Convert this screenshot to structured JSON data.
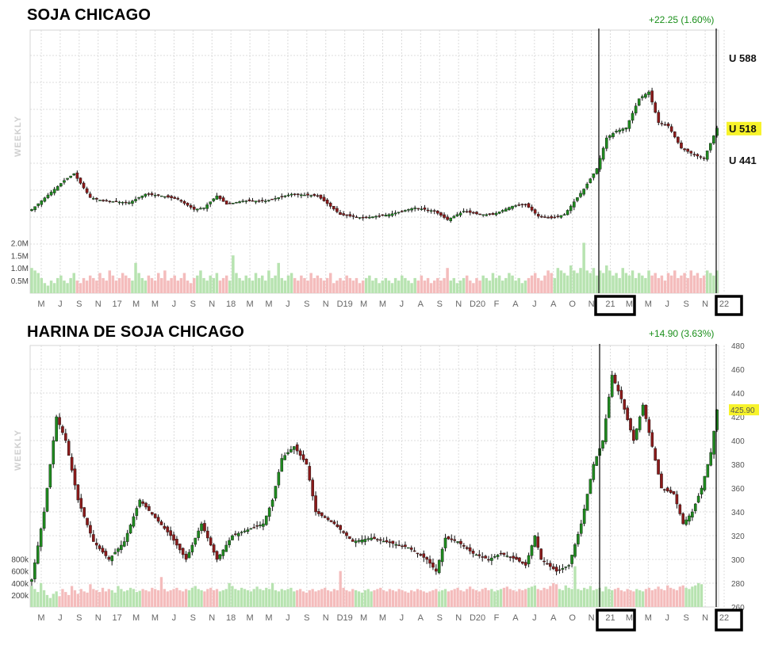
{
  "chart_data": [
    {
      "type": "candlestick",
      "title": "SOJA CHICAGO",
      "change_text": "+22.25 (1.60%)",
      "ylabel": "WEEKLY",
      "level_labels": [
        {
          "text": "U 588",
          "value": 1800,
          "highlight": false
        },
        {
          "text": "U 518",
          "value": 1387,
          "highlight": true
        },
        {
          "text": "U 441",
          "value": 1200,
          "highlight": false
        }
      ],
      "volume_ticks": [
        "2.0M",
        "1.5M",
        "1.0M",
        "0.5M"
      ],
      "volume_tick_values": [
        2.0,
        1.5,
        1.0,
        0.5
      ],
      "x_ticks": [
        "M",
        "J",
        "S",
        "N",
        "17",
        "M",
        "M",
        "J",
        "S",
        "N",
        "18",
        "M",
        "M",
        "J",
        "S",
        "N",
        "D19",
        "M",
        "M",
        "J",
        "A",
        "S",
        "N",
        "D20",
        "F",
        "A",
        "J",
        "A",
        "O",
        "N",
        "21",
        "M",
        "M",
        "J",
        "S",
        "N",
        "22"
      ],
      "boxed_x_ticks": [
        "21",
        "22"
      ],
      "grid": true,
      "anchors": [
        {
          "w": 0,
          "v": 910
        },
        {
          "w": 10,
          "v": 1080
        },
        {
          "w": 13,
          "v": 1120
        },
        {
          "w": 18,
          "v": 980
        },
        {
          "w": 22,
          "v": 960
        },
        {
          "w": 30,
          "v": 950
        },
        {
          "w": 35,
          "v": 1000
        },
        {
          "w": 40,
          "v": 990
        },
        {
          "w": 45,
          "v": 970
        },
        {
          "w": 50,
          "v": 910
        },
        {
          "w": 53,
          "v": 920
        },
        {
          "w": 57,
          "v": 990
        },
        {
          "w": 60,
          "v": 940
        },
        {
          "w": 65,
          "v": 960
        },
        {
          "w": 72,
          "v": 960
        },
        {
          "w": 80,
          "v": 1000
        },
        {
          "w": 88,
          "v": 990
        },
        {
          "w": 90,
          "v": 960
        },
        {
          "w": 95,
          "v": 880
        },
        {
          "w": 102,
          "v": 860
        },
        {
          "w": 110,
          "v": 880
        },
        {
          "w": 118,
          "v": 920
        },
        {
          "w": 124,
          "v": 900
        },
        {
          "w": 128,
          "v": 850
        },
        {
          "w": 133,
          "v": 900
        },
        {
          "w": 138,
          "v": 880
        },
        {
          "w": 142,
          "v": 880
        },
        {
          "w": 148,
          "v": 930
        },
        {
          "w": 152,
          "v": 940
        },
        {
          "w": 156,
          "v": 870
        },
        {
          "w": 160,
          "v": 860
        },
        {
          "w": 164,
          "v": 880
        },
        {
          "w": 170,
          "v": 1030
        },
        {
          "w": 174,
          "v": 1150
        },
        {
          "w": 177,
          "v": 1330
        },
        {
          "w": 180,
          "v": 1370
        },
        {
          "w": 183,
          "v": 1390
        },
        {
          "w": 187,
          "v": 1560
        },
        {
          "w": 190,
          "v": 1600
        },
        {
          "w": 193,
          "v": 1420
        },
        {
          "w": 196,
          "v": 1400
        },
        {
          "w": 200,
          "v": 1270
        },
        {
          "w": 204,
          "v": 1230
        },
        {
          "w": 207,
          "v": 1210
        },
        {
          "w": 211,
          "v": 1387
        }
      ],
      "volume": [
        1.0,
        0.9,
        0.8,
        0.6,
        0.4,
        0.3,
        0.5,
        0.4,
        0.6,
        0.7,
        0.5,
        0.4,
        0.6,
        0.8,
        0.5,
        0.4,
        0.6,
        0.5,
        0.7,
        0.6,
        0.5,
        0.8,
        0.6,
        0.5,
        0.9,
        0.7,
        0.5,
        0.6,
        0.8,
        0.7,
        0.6,
        0.5,
        1.2,
        0.8,
        0.6,
        0.5,
        0.7,
        0.6,
        0.5,
        0.8,
        0.6,
        0.9,
        0.5,
        0.6,
        0.7,
        0.5,
        0.6,
        0.8,
        0.5,
        0.4,
        0.6,
        0.7,
        0.9,
        0.6,
        0.5,
        0.7,
        0.6,
        0.8,
        0.5,
        0.6,
        0.7,
        0.5,
        1.5,
        0.8,
        0.6,
        0.5,
        0.7,
        0.6,
        0.5,
        0.8,
        0.6,
        0.7,
        0.5,
        0.9,
        0.6,
        0.7,
        1.2,
        0.6,
        0.5,
        0.7,
        0.8,
        0.6,
        0.5,
        0.7,
        0.6,
        0.5,
        0.8,
        0.6,
        0.7,
        0.6,
        0.5,
        0.6,
        0.8,
        0.4,
        0.5,
        0.6,
        0.5,
        0.7,
        0.6,
        0.5,
        0.6,
        0.4,
        0.5,
        0.6,
        0.7,
        0.5,
        0.6,
        0.4,
        0.5,
        0.6,
        0.5,
        0.4,
        0.6,
        0.5,
        0.7,
        0.6,
        0.5,
        0.4,
        0.6,
        0.5,
        0.7,
        0.5,
        0.6,
        0.4,
        0.5,
        0.6,
        0.5,
        0.6,
        1.0,
        0.5,
        0.6,
        0.4,
        0.5,
        0.6,
        0.7,
        0.5,
        0.4,
        0.6,
        0.5,
        0.7,
        0.6,
        0.5,
        0.8,
        0.6,
        0.7,
        0.5,
        0.6,
        0.8,
        0.7,
        0.5,
        0.6,
        0.4,
        0.5,
        0.6,
        0.7,
        0.8,
        0.6,
        0.5,
        0.7,
        0.9,
        0.8,
        0.6,
        1.0,
        0.9,
        0.8,
        0.7,
        1.1,
        0.9,
        0.8,
        1.0,
        2.0,
        0.9,
        0.8,
        1.0,
        0.7,
        0.9,
        0.8,
        1.1,
        0.9,
        0.7,
        0.8,
        0.6,
        1.0,
        0.8,
        0.7,
        0.9,
        0.6,
        0.8,
        0.7,
        0.6,
        0.9,
        0.7,
        0.8,
        0.6,
        0.7,
        0.5,
        0.8,
        0.7,
        0.9,
        0.6,
        0.7,
        0.8,
        0.6,
        0.9,
        0.7,
        0.8,
        0.6,
        0.7,
        0.9,
        0.8,
        0.7,
        0.9,
        1.0,
        0.8,
        0.7,
        0.9,
        0.8
      ]
    },
    {
      "type": "candlestick",
      "title": "HARINA DE SOJA CHICAGO",
      "change_text": "+14.90 (3.63%)",
      "ylabel": "WEEKLY",
      "y_ticks": [
        260,
        280,
        300,
        320,
        340,
        360,
        380,
        400,
        420,
        440,
        460,
        480
      ],
      "ylim": [
        260,
        480
      ],
      "last_price": "425.90",
      "volume_ticks": [
        "800k",
        "600k",
        "400k",
        "200k"
      ],
      "volume_tick_values": [
        800,
        600,
        400,
        200
      ],
      "x_ticks": [
        "M",
        "J",
        "S",
        "N",
        "17",
        "M",
        "M",
        "J",
        "S",
        "N",
        "18",
        "M",
        "M",
        "J",
        "S",
        "N",
        "D19",
        "M",
        "M",
        "J",
        "A",
        "S",
        "N",
        "D20",
        "F",
        "A",
        "J",
        "A",
        "O",
        "N",
        "21",
        "M",
        "M",
        "J",
        "S",
        "N",
        "22"
      ],
      "boxed_x_ticks": [
        "21",
        "22"
      ],
      "grid": true,
      "anchors": [
        {
          "w": 0,
          "v": 283
        },
        {
          "w": 4,
          "v": 340
        },
        {
          "w": 8,
          "v": 420
        },
        {
          "w": 11,
          "v": 400
        },
        {
          "w": 15,
          "v": 350
        },
        {
          "w": 20,
          "v": 315
        },
        {
          "w": 25,
          "v": 300
        },
        {
          "w": 30,
          "v": 315
        },
        {
          "w": 35,
          "v": 350
        },
        {
          "w": 40,
          "v": 335
        },
        {
          "w": 45,
          "v": 320
        },
        {
          "w": 50,
          "v": 300
        },
        {
          "w": 55,
          "v": 330
        },
        {
          "w": 60,
          "v": 300
        },
        {
          "w": 65,
          "v": 320
        },
        {
          "w": 70,
          "v": 325
        },
        {
          "w": 75,
          "v": 330
        },
        {
          "w": 78,
          "v": 350
        },
        {
          "w": 81,
          "v": 385
        },
        {
          "w": 85,
          "v": 395
        },
        {
          "w": 89,
          "v": 380
        },
        {
          "w": 92,
          "v": 340
        },
        {
          "w": 98,
          "v": 330
        },
        {
          "w": 104,
          "v": 315
        },
        {
          "w": 110,
          "v": 318
        },
        {
          "w": 116,
          "v": 314
        },
        {
          "w": 122,
          "v": 310
        },
        {
          "w": 128,
          "v": 300
        },
        {
          "w": 131,
          "v": 290
        },
        {
          "w": 134,
          "v": 318
        },
        {
          "w": 138,
          "v": 315
        },
        {
          "w": 143,
          "v": 305
        },
        {
          "w": 148,
          "v": 300
        },
        {
          "w": 152,
          "v": 305
        },
        {
          "w": 157,
          "v": 300
        },
        {
          "w": 160,
          "v": 295
        },
        {
          "w": 163,
          "v": 320
        },
        {
          "w": 165,
          "v": 300
        },
        {
          "w": 170,
          "v": 290
        },
        {
          "w": 174,
          "v": 295
        },
        {
          "w": 178,
          "v": 330
        },
        {
          "w": 182,
          "v": 380
        },
        {
          "w": 185,
          "v": 400
        },
        {
          "w": 188,
          "v": 455
        },
        {
          "w": 191,
          "v": 435
        },
        {
          "w": 195,
          "v": 400
        },
        {
          "w": 198,
          "v": 430
        },
        {
          "w": 201,
          "v": 395
        },
        {
          "w": 204,
          "v": 360
        },
        {
          "w": 208,
          "v": 355
        },
        {
          "w": 211,
          "v": 330
        },
        {
          "w": 214,
          "v": 340
        },
        {
          "w": 217,
          "v": 360
        },
        {
          "w": 220,
          "v": 390
        },
        {
          "w": 222,
          "v": 425.9
        }
      ],
      "volume": [
        350,
        300,
        250,
        400,
        280,
        200,
        150,
        220,
        260,
        180,
        300,
        250,
        200,
        350,
        280,
        220,
        300,
        260,
        240,
        380,
        300,
        280,
        250,
        320,
        260,
        300,
        280,
        240,
        350,
        300,
        260,
        280,
        320,
        300,
        250,
        270,
        300,
        280,
        260,
        320,
        300,
        280,
        500,
        300,
        260,
        280,
        300,
        320,
        280,
        260,
        300,
        280,
        320,
        350,
        300,
        280,
        260,
        300,
        320,
        280,
        300,
        260,
        280,
        300,
        400,
        350,
        300,
        280,
        320,
        300,
        280,
        260,
        300,
        340,
        300,
        280,
        320,
        300,
        400,
        280,
        260,
        300,
        280,
        300,
        320,
        260,
        280,
        300,
        260,
        240,
        280,
        300,
        260,
        280,
        300,
        320,
        280,
        260,
        300,
        280,
        600,
        320,
        280,
        260,
        300,
        280,
        260,
        240,
        280,
        300,
        260,
        280,
        300,
        320,
        280,
        260,
        300,
        280,
        260,
        300,
        280,
        260,
        240,
        280,
        260,
        300,
        280,
        260,
        240,
        260,
        280,
        300,
        260,
        280,
        300,
        260,
        280,
        300,
        320,
        280,
        260,
        300,
        340,
        300,
        280,
        260,
        300,
        320,
        280,
        300,
        260,
        280,
        300,
        320,
        340,
        300,
        280,
        260,
        300,
        280,
        300,
        320,
        340,
        360,
        300,
        280,
        320,
        300,
        350,
        400,
        380,
        300,
        280,
        360,
        320,
        300,
        680,
        300,
        280,
        320,
        300,
        350,
        280,
        300,
        320,
        260,
        340,
        300,
        280,
        300,
        320,
        280,
        260,
        300,
        280,
        260,
        300,
        280,
        260,
        300,
        320,
        280,
        300,
        340,
        300,
        280,
        360,
        320,
        300,
        280,
        340,
        360,
        320,
        300,
        340,
        360,
        400,
        380
      ]
    }
  ]
}
